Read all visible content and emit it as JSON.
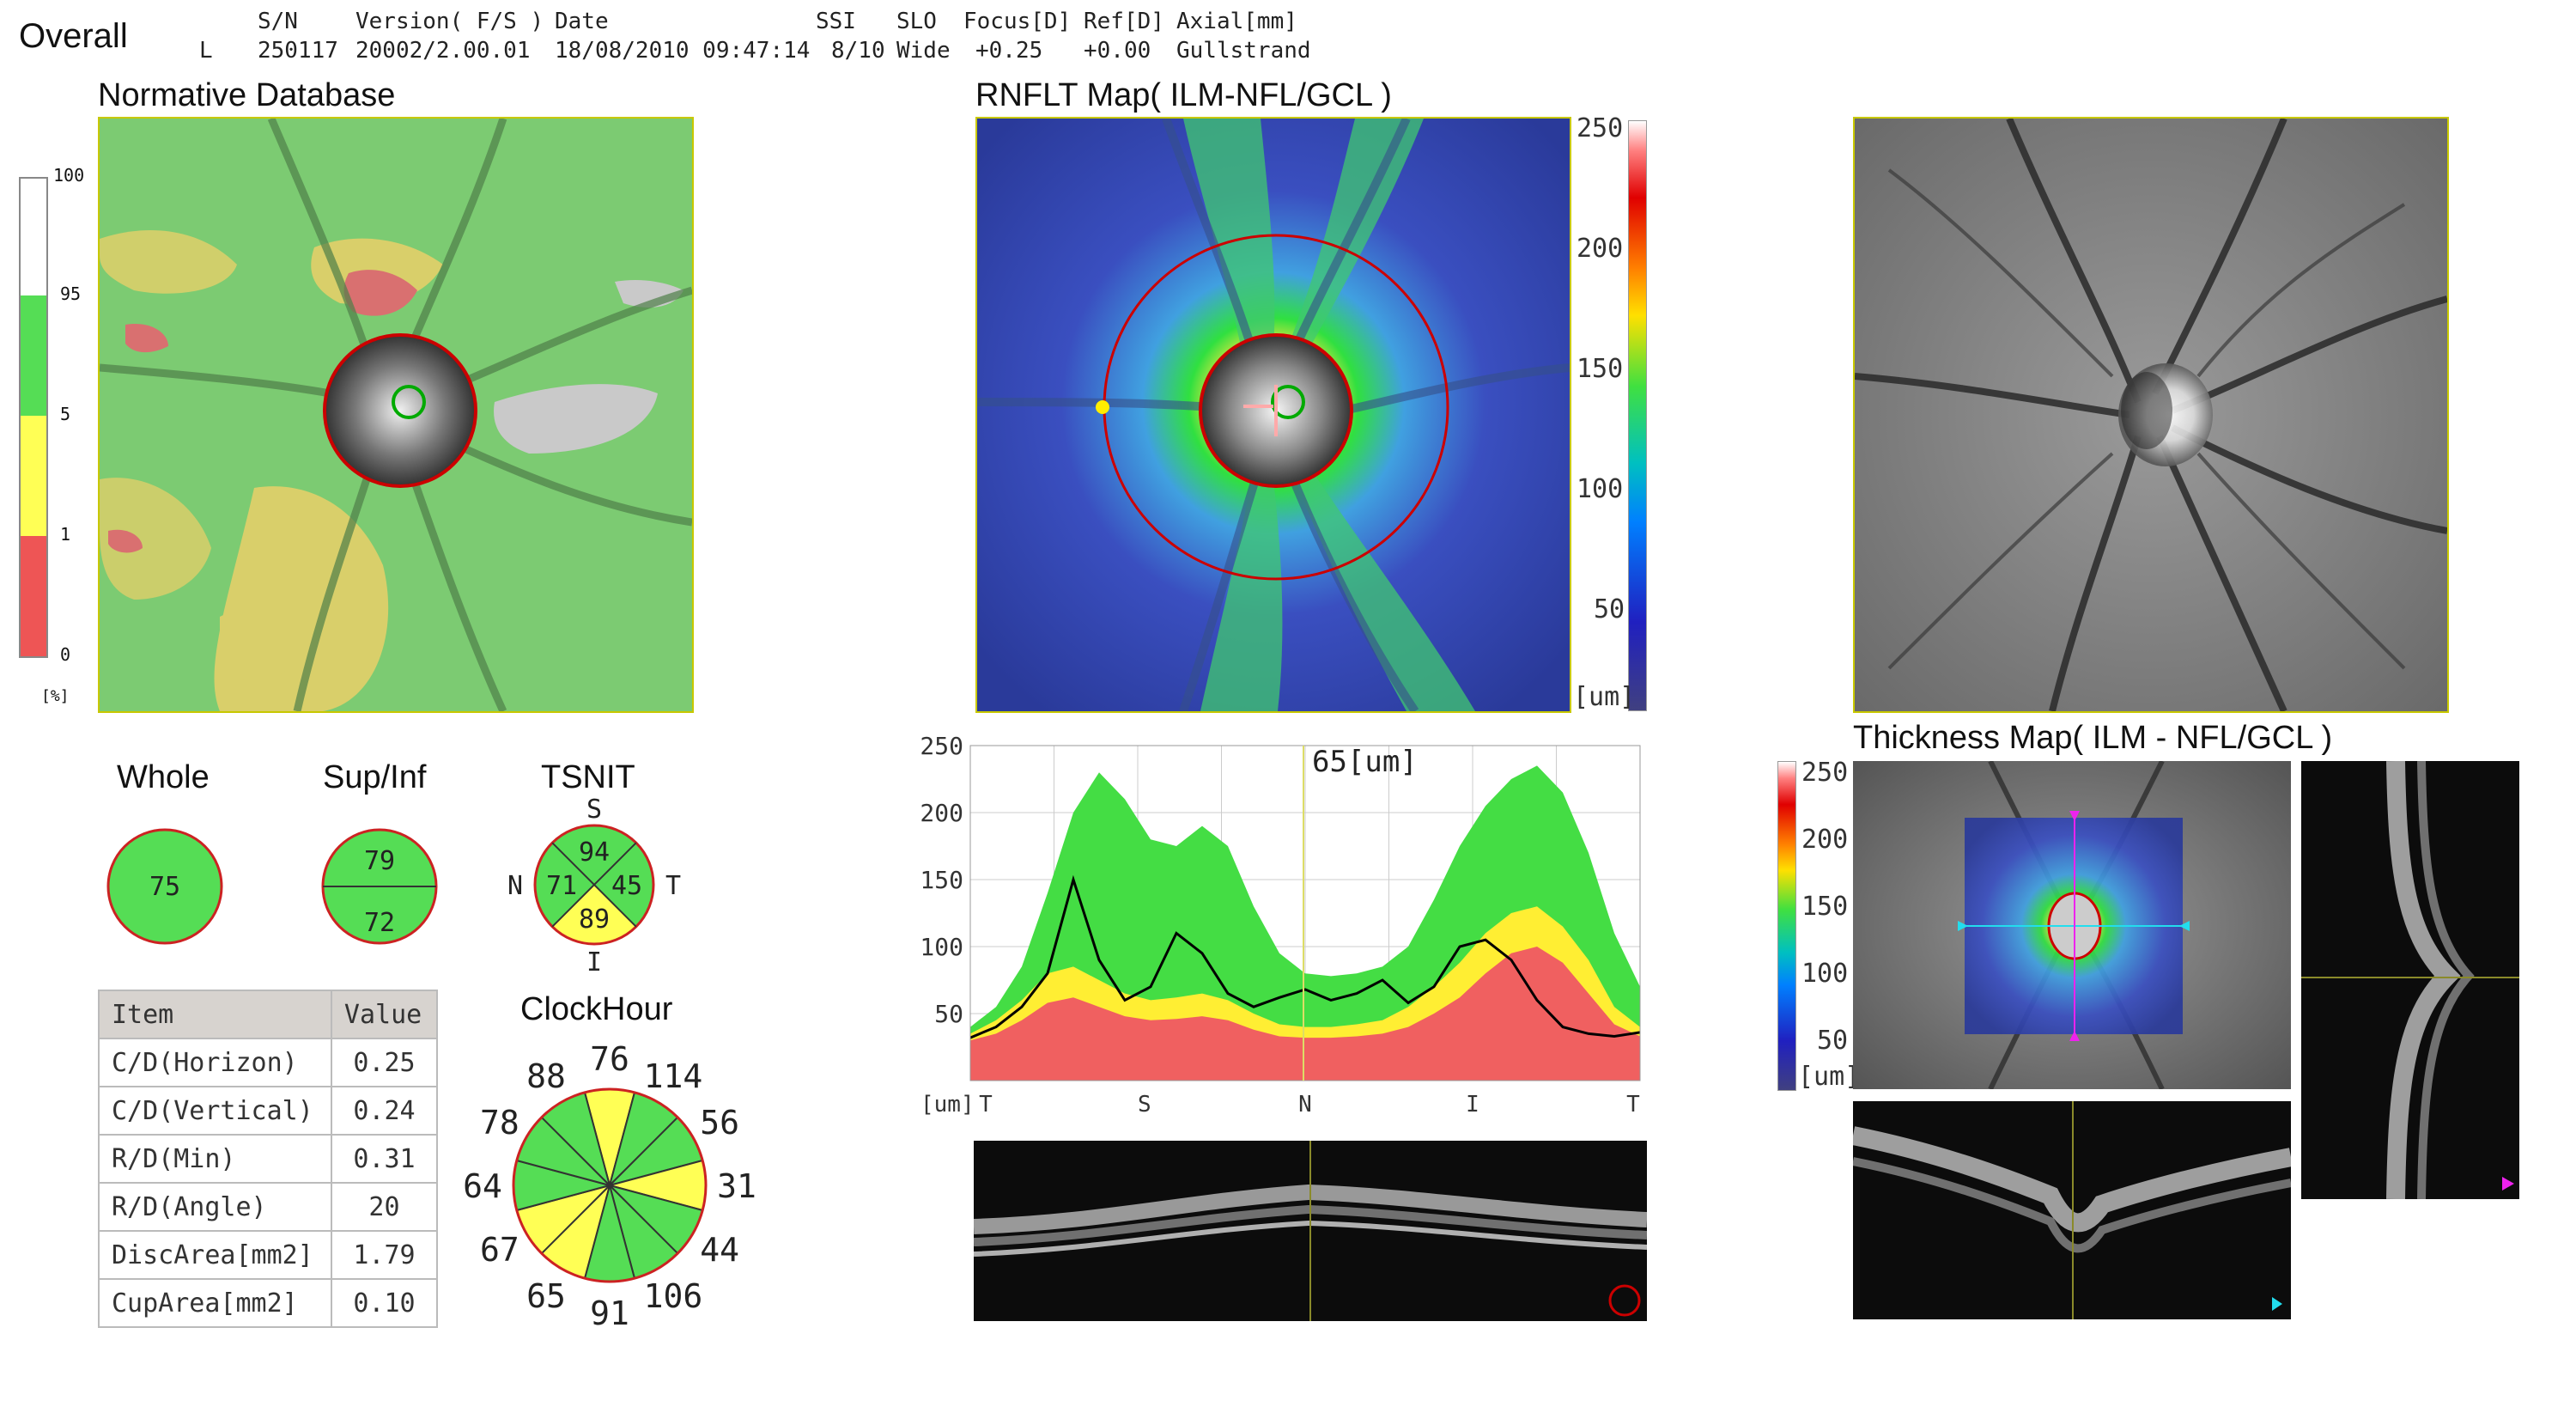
{
  "header": {
    "title": "Overall",
    "columns": [
      "S/N",
      "Version( F/S )",
      "Date",
      "SSI",
      "SLO",
      "Focus[D]",
      "Ref[D]",
      "Axial[mm]"
    ],
    "row_label": "L",
    "values": [
      "250117",
      "20002/2.00.01",
      "18/08/2010 09:47:14",
      "8/10",
      "Wide",
      "+0.25",
      "+0.00",
      "Gullstrand"
    ]
  },
  "normative": {
    "title": "Normative Database",
    "scale_ticks": [
      "100",
      "95",
      "5",
      "1",
      "0"
    ],
    "unit": "[%]",
    "colors": {
      "white": "#ffffff",
      "green": "#55dd55",
      "yellow": "#ffff55",
      "red": "#ee5555"
    }
  },
  "rnflt_map": {
    "title": "RNFLT Map( ILM-NFL/GCL )",
    "scale_ticks": [
      "250",
      "200",
      "150",
      "100",
      "50"
    ],
    "unit": "[um]"
  },
  "thickness_map": {
    "title": "Thickness Map( ILM - NFL/GCL )",
    "scale_ticks": [
      "250",
      "200",
      "150",
      "100",
      "50"
    ],
    "unit": "[um]"
  },
  "summary": {
    "whole": {
      "label": "Whole",
      "value": "75"
    },
    "supinf": {
      "label": "Sup/Inf",
      "sup": "79",
      "inf": "72"
    },
    "tsnit": {
      "label": "TSNIT",
      "S": "94",
      "N": "71",
      "T": "45",
      "I": "89",
      "lbl_S": "S",
      "lbl_N": "N",
      "lbl_T": "T",
      "lbl_I": "I"
    }
  },
  "params": {
    "headers": [
      "Item",
      "Value"
    ],
    "rows": [
      {
        "item": "C/D(Horizon)",
        "value": "0.25"
      },
      {
        "item": "C/D(Vertical)",
        "value": "0.24"
      },
      {
        "item": "R/D(Min)",
        "value": "0.31"
      },
      {
        "item": "R/D(Angle)",
        "value": "20"
      },
      {
        "item": "DiscArea[mm2]",
        "value": "1.79"
      },
      {
        "item": "CupArea[mm2]",
        "value": "0.10"
      }
    ]
  },
  "clockhour": {
    "title": "ClockHour",
    "values": [
      "76",
      "114",
      "56",
      "31",
      "44",
      "106",
      "91",
      "65",
      "67",
      "64",
      "78",
      "88"
    ],
    "colors": [
      "#ffff55",
      "#55dd55",
      "#55dd55",
      "#ffff55",
      "#55dd55",
      "#55dd55",
      "#55dd55",
      "#ffff55",
      "#ffff55",
      "#55dd55",
      "#55dd55",
      "#55dd55"
    ]
  },
  "chart_data": {
    "type": "line",
    "y_ticks": [
      "250",
      "200",
      "150",
      "100",
      "50"
    ],
    "ylim": [
      0,
      250
    ],
    "x_tick_labels": [
      "T",
      "S",
      "N",
      "I",
      "T"
    ],
    "x_unit_label": "[um]",
    "cursor_value": "65[um]",
    "series": [
      {
        "values": [
          40,
          55,
          85,
          140,
          200,
          230,
          210,
          180,
          175,
          190,
          175,
          130,
          95,
          80,
          78,
          80,
          85,
          100,
          135,
          175,
          205,
          225,
          235,
          215,
          170,
          110,
          70
        ]
      },
      {
        "values": [
          35,
          45,
          60,
          80,
          85,
          75,
          65,
          60,
          62,
          65,
          60,
          50,
          42,
          40,
          40,
          42,
          45,
          55,
          70,
          88,
          110,
          125,
          130,
          115,
          90,
          55,
          40
        ]
      },
      {
        "values": [
          30,
          35,
          45,
          58,
          62,
          55,
          48,
          45,
          46,
          48,
          45,
          38,
          33,
          32,
          32,
          33,
          35,
          40,
          50,
          62,
          80,
          95,
          100,
          88,
          65,
          42,
          33
        ]
      },
      {
        "values": [
          32,
          40,
          55,
          80,
          150,
          90,
          60,
          70,
          110,
          95,
          65,
          55,
          62,
          68,
          60,
          65,
          75,
          58,
          70,
          100,
          105,
          90,
          60,
          40,
          35,
          33,
          36
        ]
      }
    ]
  }
}
